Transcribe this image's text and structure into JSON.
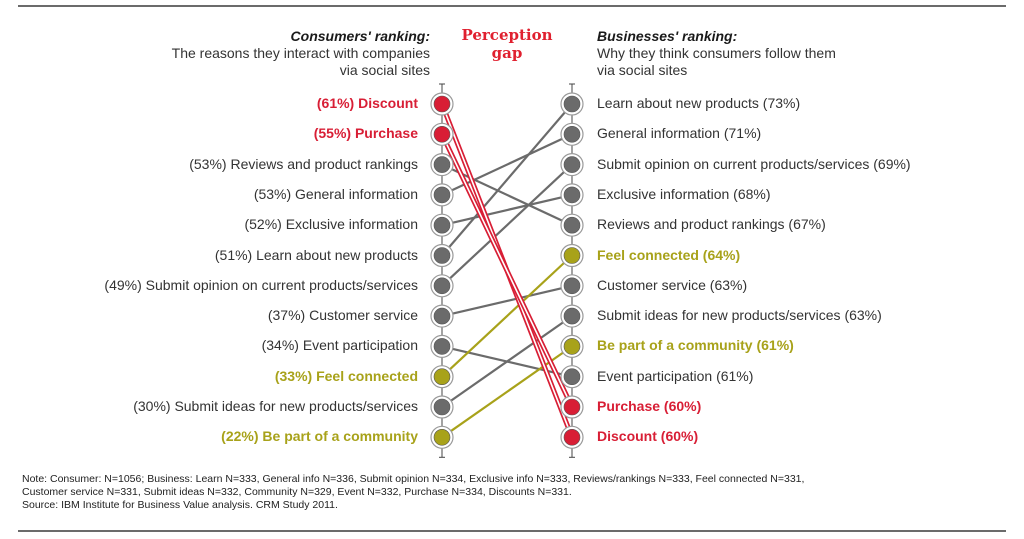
{
  "chart_data": {
    "type": "slope",
    "title": "Perception gap",
    "left_axis": {
      "title": "Consumers' ranking:",
      "subtitle": [
        "The reasons they interact with companies",
        "via social sites"
      ]
    },
    "right_axis": {
      "title": "Businesses' ranking:",
      "subtitle": [
        "Why they think consumers follow them",
        "via social sites"
      ]
    },
    "colors": {
      "red": "#d81e35",
      "olive": "#a8a21a",
      "gray": "#6b6b6b",
      "node_ring": "#9a9a9a"
    },
    "consumers": [
      {
        "item": "Discount",
        "value": 61,
        "label": "(61%) Discount",
        "color": "red"
      },
      {
        "item": "Purchase",
        "value": 55,
        "label": "(55%) Purchase",
        "color": "red"
      },
      {
        "item": "Reviews and product rankings",
        "value": 53,
        "label": "(53%) Reviews and product rankings",
        "color": "gray"
      },
      {
        "item": "General information",
        "value": 53,
        "label": "(53%) General information",
        "color": "gray"
      },
      {
        "item": "Exclusive information",
        "value": 52,
        "label": "(52%) Exclusive information",
        "color": "gray"
      },
      {
        "item": "Learn about new products",
        "value": 51,
        "label": "(51%) Learn about new products",
        "color": "gray"
      },
      {
        "item": "Submit opinion on current products/services",
        "value": 49,
        "label": "(49%) Submit opinion on current products/services",
        "color": "gray"
      },
      {
        "item": "Customer service",
        "value": 37,
        "label": "(37%) Customer service",
        "color": "gray"
      },
      {
        "item": "Event participation",
        "value": 34,
        "label": "(34%) Event participation",
        "color": "gray"
      },
      {
        "item": "Feel connected",
        "value": 33,
        "label": "(33%) Feel connected",
        "color": "olive"
      },
      {
        "item": "Submit ideas for new products/services",
        "value": 30,
        "label": "(30%) Submit ideas for new products/services",
        "color": "gray"
      },
      {
        "item": "Be part of a community",
        "value": 22,
        "label": "(22%) Be part of a community",
        "color": "olive"
      }
    ],
    "businesses": [
      {
        "item": "Learn about new products",
        "value": 73,
        "label": "Learn about new products (73%)",
        "color": "gray"
      },
      {
        "item": "General information",
        "value": 71,
        "label": "General information (71%)",
        "color": "gray"
      },
      {
        "item": "Submit opinion on current products/services",
        "value": 69,
        "label": "Submit opinion on current products/services (69%)",
        "color": "gray"
      },
      {
        "item": "Exclusive information",
        "value": 68,
        "label": "Exclusive information (68%)",
        "color": "gray"
      },
      {
        "item": "Reviews and product rankings",
        "value": 67,
        "label": "Reviews and product rankings (67%)",
        "color": "gray"
      },
      {
        "item": "Feel connected",
        "value": 64,
        "label": "Feel connected (64%)",
        "color": "olive"
      },
      {
        "item": "Customer service",
        "value": 63,
        "label": "Customer service (63%)",
        "color": "gray"
      },
      {
        "item": "Submit ideas for new products/services",
        "value": 63,
        "label": "Submit ideas for new products/services (63%)",
        "color": "gray"
      },
      {
        "item": "Be part of a community",
        "value": 61,
        "label": "Be part of a community (61%)",
        "color": "olive"
      },
      {
        "item": "Event participation",
        "value": 61,
        "label": "Event participation (61%)",
        "color": "gray"
      },
      {
        "item": "Purchase",
        "value": 60,
        "label": "Purchase (60%)",
        "color": "red"
      },
      {
        "item": "Discount",
        "value": 60,
        "label": "Discount (60%)",
        "color": "red"
      }
    ]
  },
  "notes": [
    "Note: Consumer: N=1056; Business: Learn N=333, General info N=336, Submit opinion N=334, Exclusive info N=333, Reviews/rankings N=333, Feel connected N=331,",
    "Customer service N=331, Submit ideas N=332, Community N=329, Event N=332, Purchase N=334, Discounts N=331.",
    "Source: IBM Institute for Business Value analysis. CRM Study 2011."
  ]
}
